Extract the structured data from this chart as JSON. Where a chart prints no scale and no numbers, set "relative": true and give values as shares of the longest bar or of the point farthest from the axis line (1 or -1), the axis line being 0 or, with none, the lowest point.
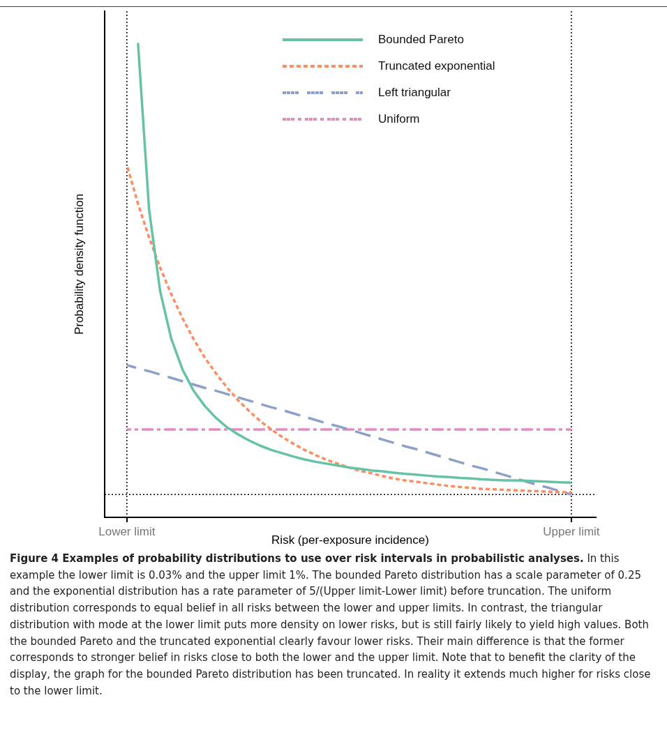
{
  "chart_data": {
    "type": "line",
    "title": "Figure 4 Examples of probability distributions to use over risk intervals in probabilistic analyses.",
    "xlabel": "Risk (per-exposure incidence)",
    "ylabel": "Probability density function",
    "relative": true,
    "legend": "top",
    "categories": [
      "Lower limit",
      null,
      null,
      null,
      null,
      null,
      null,
      null,
      null,
      null,
      null,
      null,
      null,
      null,
      null,
      null,
      null,
      null,
      null,
      null,
      null,
      null,
      null,
      null,
      null,
      null,
      null,
      null,
      null,
      null,
      null,
      null,
      null,
      null,
      null,
      null,
      null,
      null,
      null,
      null,
      "Upper limit"
    ],
    "ref_lines": [
      {
        "axis": "x",
        "value": "Lower limit",
        "color": "#000000",
        "line_style": "dotted"
      },
      {
        "axis": "x",
        "value": "Upper limit",
        "color": "#000000",
        "line_style": "dotted"
      },
      {
        "axis": "y",
        "value": 0.048,
        "color": "#000000",
        "line_style": "dotted"
      }
    ],
    "series": [
      {
        "name": "Bounded Pareto",
        "color": "#66c2a5",
        "line_style": "solid",
        "values": [
          null,
          1,
          0.648,
          0.476,
          0.376,
          0.312,
          0.267,
          0.235,
          0.21,
          0.19,
          0.175,
          0.162,
          0.151,
          0.142,
          0.135,
          0.128,
          0.122,
          0.117,
          0.113,
          0.109,
          0.105,
          0.102,
          0.099,
          0.097,
          0.094,
          0.092,
          0.09,
          0.088,
          0.086,
          0.085,
          0.083,
          0.082,
          0.08,
          0.079,
          0.078,
          0.078,
          0.077,
          0.076,
          0.075,
          0.074,
          0.073
        ]
      },
      {
        "name": "Truncated exponential",
        "color": "#fc8d62",
        "line_style": "dotted",
        "values": [
          0.743,
          0.661,
          0.59,
          0.526,
          0.47,
          0.42,
          0.376,
          0.337,
          0.304,
          0.274,
          0.247,
          0.224,
          0.203,
          0.185,
          0.169,
          0.155,
          0.142,
          0.131,
          0.121,
          0.113,
          0.105,
          0.098,
          0.093,
          0.087,
          0.082,
          0.078,
          0.075,
          0.072,
          0.069,
          0.066,
          0.064,
          0.062,
          0.06,
          0.059,
          0.058,
          0.057,
          0.056,
          0.055,
          0.054,
          0.053,
          0.053
        ]
      },
      {
        "name": "Left triangular",
        "color": "#8da0cb",
        "line_style": "dashed",
        "values": [
          0.321,
          0.314,
          0.308,
          0.301,
          0.294,
          0.287,
          0.28,
          0.273,
          0.267,
          0.26,
          0.253,
          0.246,
          0.239,
          0.232,
          0.226,
          0.219,
          0.212,
          0.205,
          0.198,
          0.192,
          0.185,
          0.178,
          0.171,
          0.164,
          0.157,
          0.15,
          0.144,
          0.137,
          0.13,
          0.123,
          0.116,
          0.109,
          0.103,
          0.096,
          0.089,
          0.082,
          0.075,
          0.068,
          0.062,
          0.055,
          0.048
        ]
      },
      {
        "name": "Uniform",
        "color": "#e78ac3",
        "line_style": "dashdot",
        "values": [
          0.185,
          0.185,
          0.185,
          0.185,
          0.185,
          0.185,
          0.185,
          0.185,
          0.185,
          0.185,
          0.185,
          0.185,
          0.185,
          0.185,
          0.185,
          0.185,
          0.185,
          0.185,
          0.185,
          0.185,
          0.185,
          0.185,
          0.185,
          0.185,
          0.185,
          0.185,
          0.185,
          0.185,
          0.185,
          0.185,
          0.185,
          0.185,
          0.185,
          0.185,
          0.185,
          0.185,
          0.185,
          0.185,
          0.185,
          0.185,
          0.185
        ]
      }
    ],
    "annotations": [
      "In this example the lower limit is 0.03% and the upper limit 1%. The bounded Pareto distribution has a scale parameter of 0.25 and the exponential distribution has a rate parameter of 5/(Upper limit-Lower limit) before truncation. The uniform distribution corresponds to equal belief in all risks between the lower and upper limits. In contrast, the triangular distribution with mode at the lower limit puts more density on lower risks, but is still fairly likely to yield high values. Both the bounded Pareto and the truncated exponential clearly favour lower risks. Their main difference is that the former corresponds to stronger belief in risks close to both the lower and the upper limit. Note that to benefit the clarity of the display, the graph for the bounded Pareto distribution has been truncated. In reality it extends much higher for risks close to the lower limit."
    ]
  }
}
